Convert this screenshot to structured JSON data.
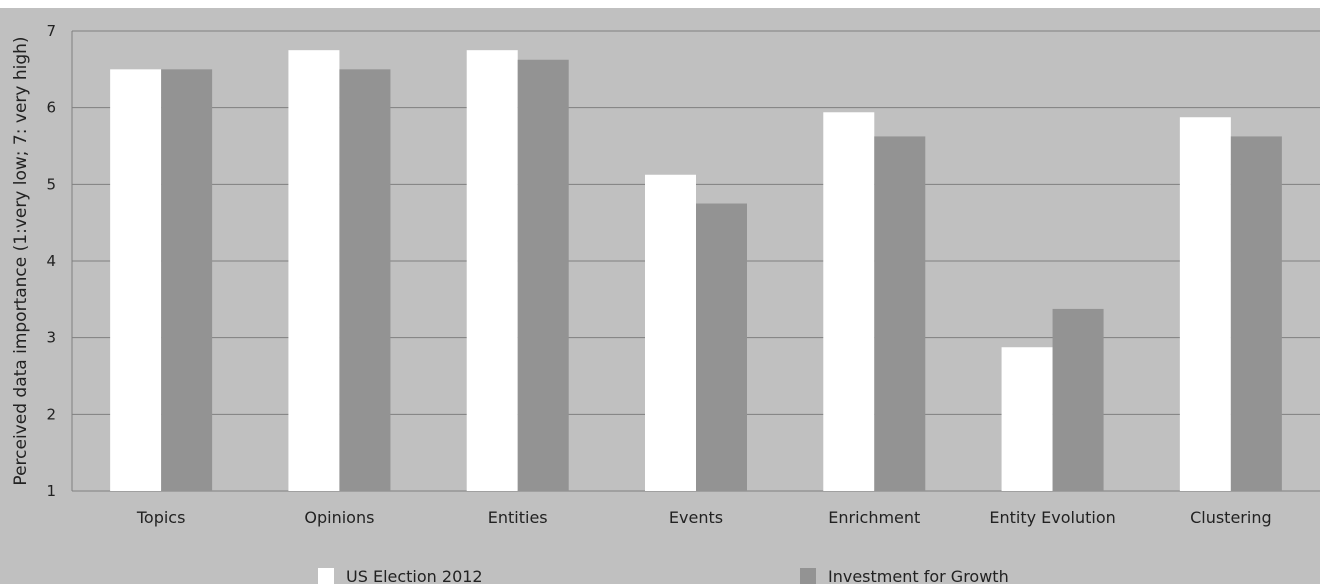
{
  "colors": {
    "background": "#c0c0c0",
    "gridline": "#7f7f7f",
    "us_election": "#ffffff",
    "investment": "#939393",
    "text": "#222222"
  },
  "chart_data": {
    "type": "bar",
    "title": "",
    "xlabel": "",
    "ylabel": "Perceived data importance (1:very low; 7: very high)",
    "ylim": [
      1,
      7
    ],
    "yticks": [
      1,
      2,
      3,
      4,
      5,
      6,
      7
    ],
    "grid": true,
    "legend_position": "bottom",
    "categories": [
      "Topics",
      "Opinions",
      "Entities",
      "Events",
      "Enrichment",
      "Entity Evolution",
      "Clustering"
    ],
    "series": [
      {
        "name": "US Election 2012",
        "color": "#ffffff",
        "values": [
          6.5,
          6.75,
          6.75,
          5.125,
          5.94,
          2.875,
          5.875
        ]
      },
      {
        "name": "Investment for Growth",
        "color": "#939393",
        "values": [
          6.5,
          6.5,
          6.625,
          4.75,
          5.625,
          3.375,
          5.625
        ]
      }
    ]
  }
}
